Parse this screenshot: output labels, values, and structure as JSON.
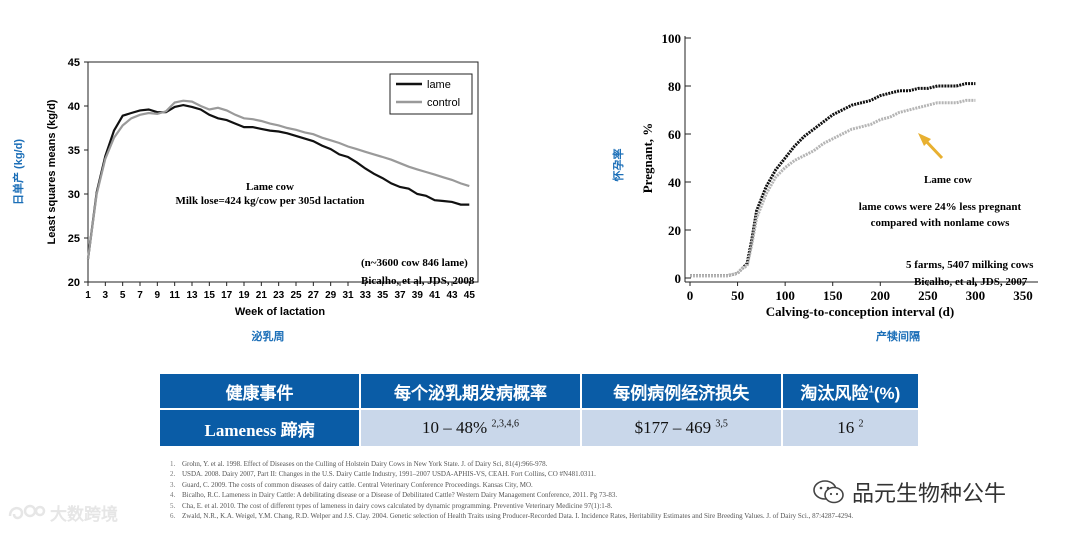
{
  "chart_data": [
    {
      "type": "line",
      "title": "",
      "xlabel": "Week of lactation",
      "ylabel": "Least squares means (kg/d)",
      "ylabel_cn": "日单产 (kg/d)",
      "xlabel_cn": "泌乳周",
      "ylim": [
        20,
        45
      ],
      "xlim": [
        1,
        46
      ],
      "x_ticks": [
        1,
        3,
        5,
        7,
        9,
        11,
        13,
        15,
        17,
        19,
        21,
        23,
        25,
        27,
        29,
        31,
        33,
        35,
        37,
        39,
        41,
        43,
        45
      ],
      "y_ticks": [
        20,
        25,
        30,
        35,
        40,
        45
      ],
      "legend": [
        "lame",
        "control"
      ],
      "legend_position": "top-right",
      "series": [
        {
          "name": "lame",
          "color": "#111111",
          "x": [
            1,
            2,
            3,
            4,
            5,
            6,
            7,
            8,
            9,
            10,
            11,
            12,
            13,
            14,
            15,
            16,
            17,
            18,
            19,
            20,
            21,
            22,
            23,
            24,
            25,
            26,
            27,
            28,
            29,
            30,
            31,
            32,
            33,
            34,
            35,
            36,
            37,
            38,
            39,
            40,
            41,
            42,
            43,
            44,
            45
          ],
          "values": [
            22.6,
            30.2,
            34.3,
            37.2,
            38.9,
            39.2,
            39.5,
            39.6,
            39.3,
            39.3,
            39.9,
            40.1,
            39.9,
            39.6,
            39.0,
            38.6,
            38.4,
            38.0,
            37.6,
            37.6,
            37.4,
            37.2,
            37.1,
            36.9,
            36.6,
            36.3,
            36.0,
            35.5,
            35.1,
            34.5,
            34.2,
            33.6,
            32.9,
            32.3,
            31.8,
            31.2,
            30.8,
            30.6,
            30.0,
            29.8,
            29.3,
            29.2,
            29.1,
            28.8,
            28.8
          ]
        },
        {
          "name": "control",
          "color": "#9a9a9a",
          "x": [
            1,
            2,
            3,
            4,
            5,
            6,
            7,
            8,
            9,
            10,
            11,
            12,
            13,
            14,
            15,
            16,
            17,
            18,
            19,
            20,
            21,
            22,
            23,
            24,
            25,
            26,
            27,
            28,
            29,
            30,
            31,
            32,
            33,
            34,
            35,
            36,
            37,
            38,
            39,
            40,
            41,
            42,
            43,
            44,
            45
          ],
          "values": [
            22.6,
            30.0,
            34.0,
            36.4,
            37.8,
            38.6,
            39.0,
            39.2,
            39.1,
            39.4,
            40.4,
            40.6,
            40.5,
            40.0,
            39.6,
            39.8,
            39.5,
            39.0,
            38.6,
            38.5,
            38.3,
            38.0,
            37.8,
            37.5,
            37.3,
            37.0,
            36.8,
            36.4,
            36.1,
            35.8,
            35.4,
            35.1,
            34.8,
            34.5,
            34.2,
            33.9,
            33.5,
            33.1,
            32.8,
            32.5,
            32.2,
            31.9,
            31.6,
            31.2,
            30.9
          ]
        }
      ],
      "annotations": [
        "Lame cow",
        "Milk lose=424 kg/cow per 305d lactation",
        "(n~3600 cow 846 lame)",
        "Bicalho, et al, JDS, 2008"
      ]
    },
    {
      "type": "line",
      "title": "",
      "xlabel": "Calving-to-conception interval (d)",
      "ylabel": "Pregnant, %",
      "ylabel_cn": "怀孕率",
      "xlabel_cn": "产犊间隔",
      "ylim": [
        0,
        100
      ],
      "xlim": [
        0,
        350
      ],
      "x_ticks": [
        0,
        50,
        100,
        150,
        200,
        250,
        300,
        350
      ],
      "y_ticks": [
        0,
        20,
        40,
        60,
        80,
        100
      ],
      "series": [
        {
          "name": "nonlame",
          "color": "#111111",
          "x": [
            0,
            40,
            50,
            55,
            60,
            65,
            70,
            80,
            90,
            100,
            110,
            120,
            130,
            140,
            150,
            160,
            170,
            180,
            190,
            200,
            210,
            220,
            230,
            240,
            250,
            260,
            270,
            280,
            290,
            300
          ],
          "values": [
            1,
            1,
            2,
            4,
            6,
            16,
            28,
            38,
            45,
            50,
            55,
            59,
            62,
            65,
            68,
            70,
            72,
            73,
            74,
            76,
            77,
            78,
            78,
            79,
            79,
            80,
            80,
            80,
            81,
            81
          ]
        },
        {
          "name": "lame",
          "color": "#b5b5b5",
          "x": [
            0,
            40,
            50,
            55,
            60,
            65,
            70,
            80,
            90,
            100,
            110,
            120,
            130,
            140,
            150,
            160,
            170,
            180,
            190,
            200,
            210,
            220,
            230,
            240,
            250,
            260,
            270,
            280,
            290,
            300
          ],
          "values": [
            1,
            1,
            2,
            4,
            5,
            14,
            25,
            35,
            42,
            46,
            49,
            51,
            53,
            56,
            58,
            60,
            62,
            63,
            64,
            66,
            67,
            69,
            70,
            71,
            72,
            73,
            73,
            73,
            74,
            74
          ]
        }
      ],
      "annotations": [
        "Lame cow",
        "lame cows were 24% less pregnant",
        "compared with nonlame cows",
        "5 farms, 5407  milking cows",
        "Bicalho, et al, JDS, 2007"
      ],
      "arrow_color": "#e8b030"
    }
  ],
  "table": {
    "headers": [
      "健康事件",
      "每个泌乳期发病概率",
      "每例病例经济损失",
      "淘汰风险"
    ],
    "header_last_sup": "1",
    "header_last_suffix": "(%)",
    "row": {
      "event": "Lameness 蹄病",
      "prob": "10 – 48%",
      "prob_sup": "2,3,4,6",
      "loss": "$177 – 469",
      "loss_sup": "3,5",
      "cull": "16",
      "cull_sup": "2"
    }
  },
  "references": [
    {
      "n": "1.",
      "text": "Grohn, Y. et al. 1998. Effect of Diseases on the Culling of Holstein Dairy Cows in New York State. J. of Dairy Sci, 81(4):966-978."
    },
    {
      "n": "2.",
      "text": "USDA. 2008. Dairy 2007, Part II: Changes in the U.S. Dairy Cattle Industry, 1991–2007 USDA-APHIS-VS, CEAH. Fort Collins, CO #N481.0311."
    },
    {
      "n": "3.",
      "text": "Guard, C. 2009. The costs of common diseases of dairy cattle.  Central Veterinary Conference Proceedings. Kansas City, MO."
    },
    {
      "n": "4.",
      "text": "Bicalho, R.C.  Lameness in Dairy Cattle:  A debilitating disease or a Disease of Debilitated Cattle? Western Dairy Management Conference, 2011. Pg 73-83."
    },
    {
      "n": "5.",
      "text": "Cha, E. et al. 2010. The cost of different types of lameness in dairy cows calculated by dynamic programming. Preventive Veterinary Medicine 97(1):1-8."
    },
    {
      "n": "6.",
      "text": "Zwald, N.R., K.A. Weigel, Y.M. Chang, R.D. Welper and J.S. Clay. 2004. Genetic selection of Health Traits using Producer-Recorded Data. I. Incidence Rates, Heritability Estimates and Sire Breeding Values. J. of Dairy Sci., 87:4287-4294."
    }
  ],
  "watermark": "品元生物种公牛",
  "logo": "大数跨境",
  "icons": {
    "watermark_icon": "wechat-icon",
    "logo_icon": "logo-icon"
  }
}
